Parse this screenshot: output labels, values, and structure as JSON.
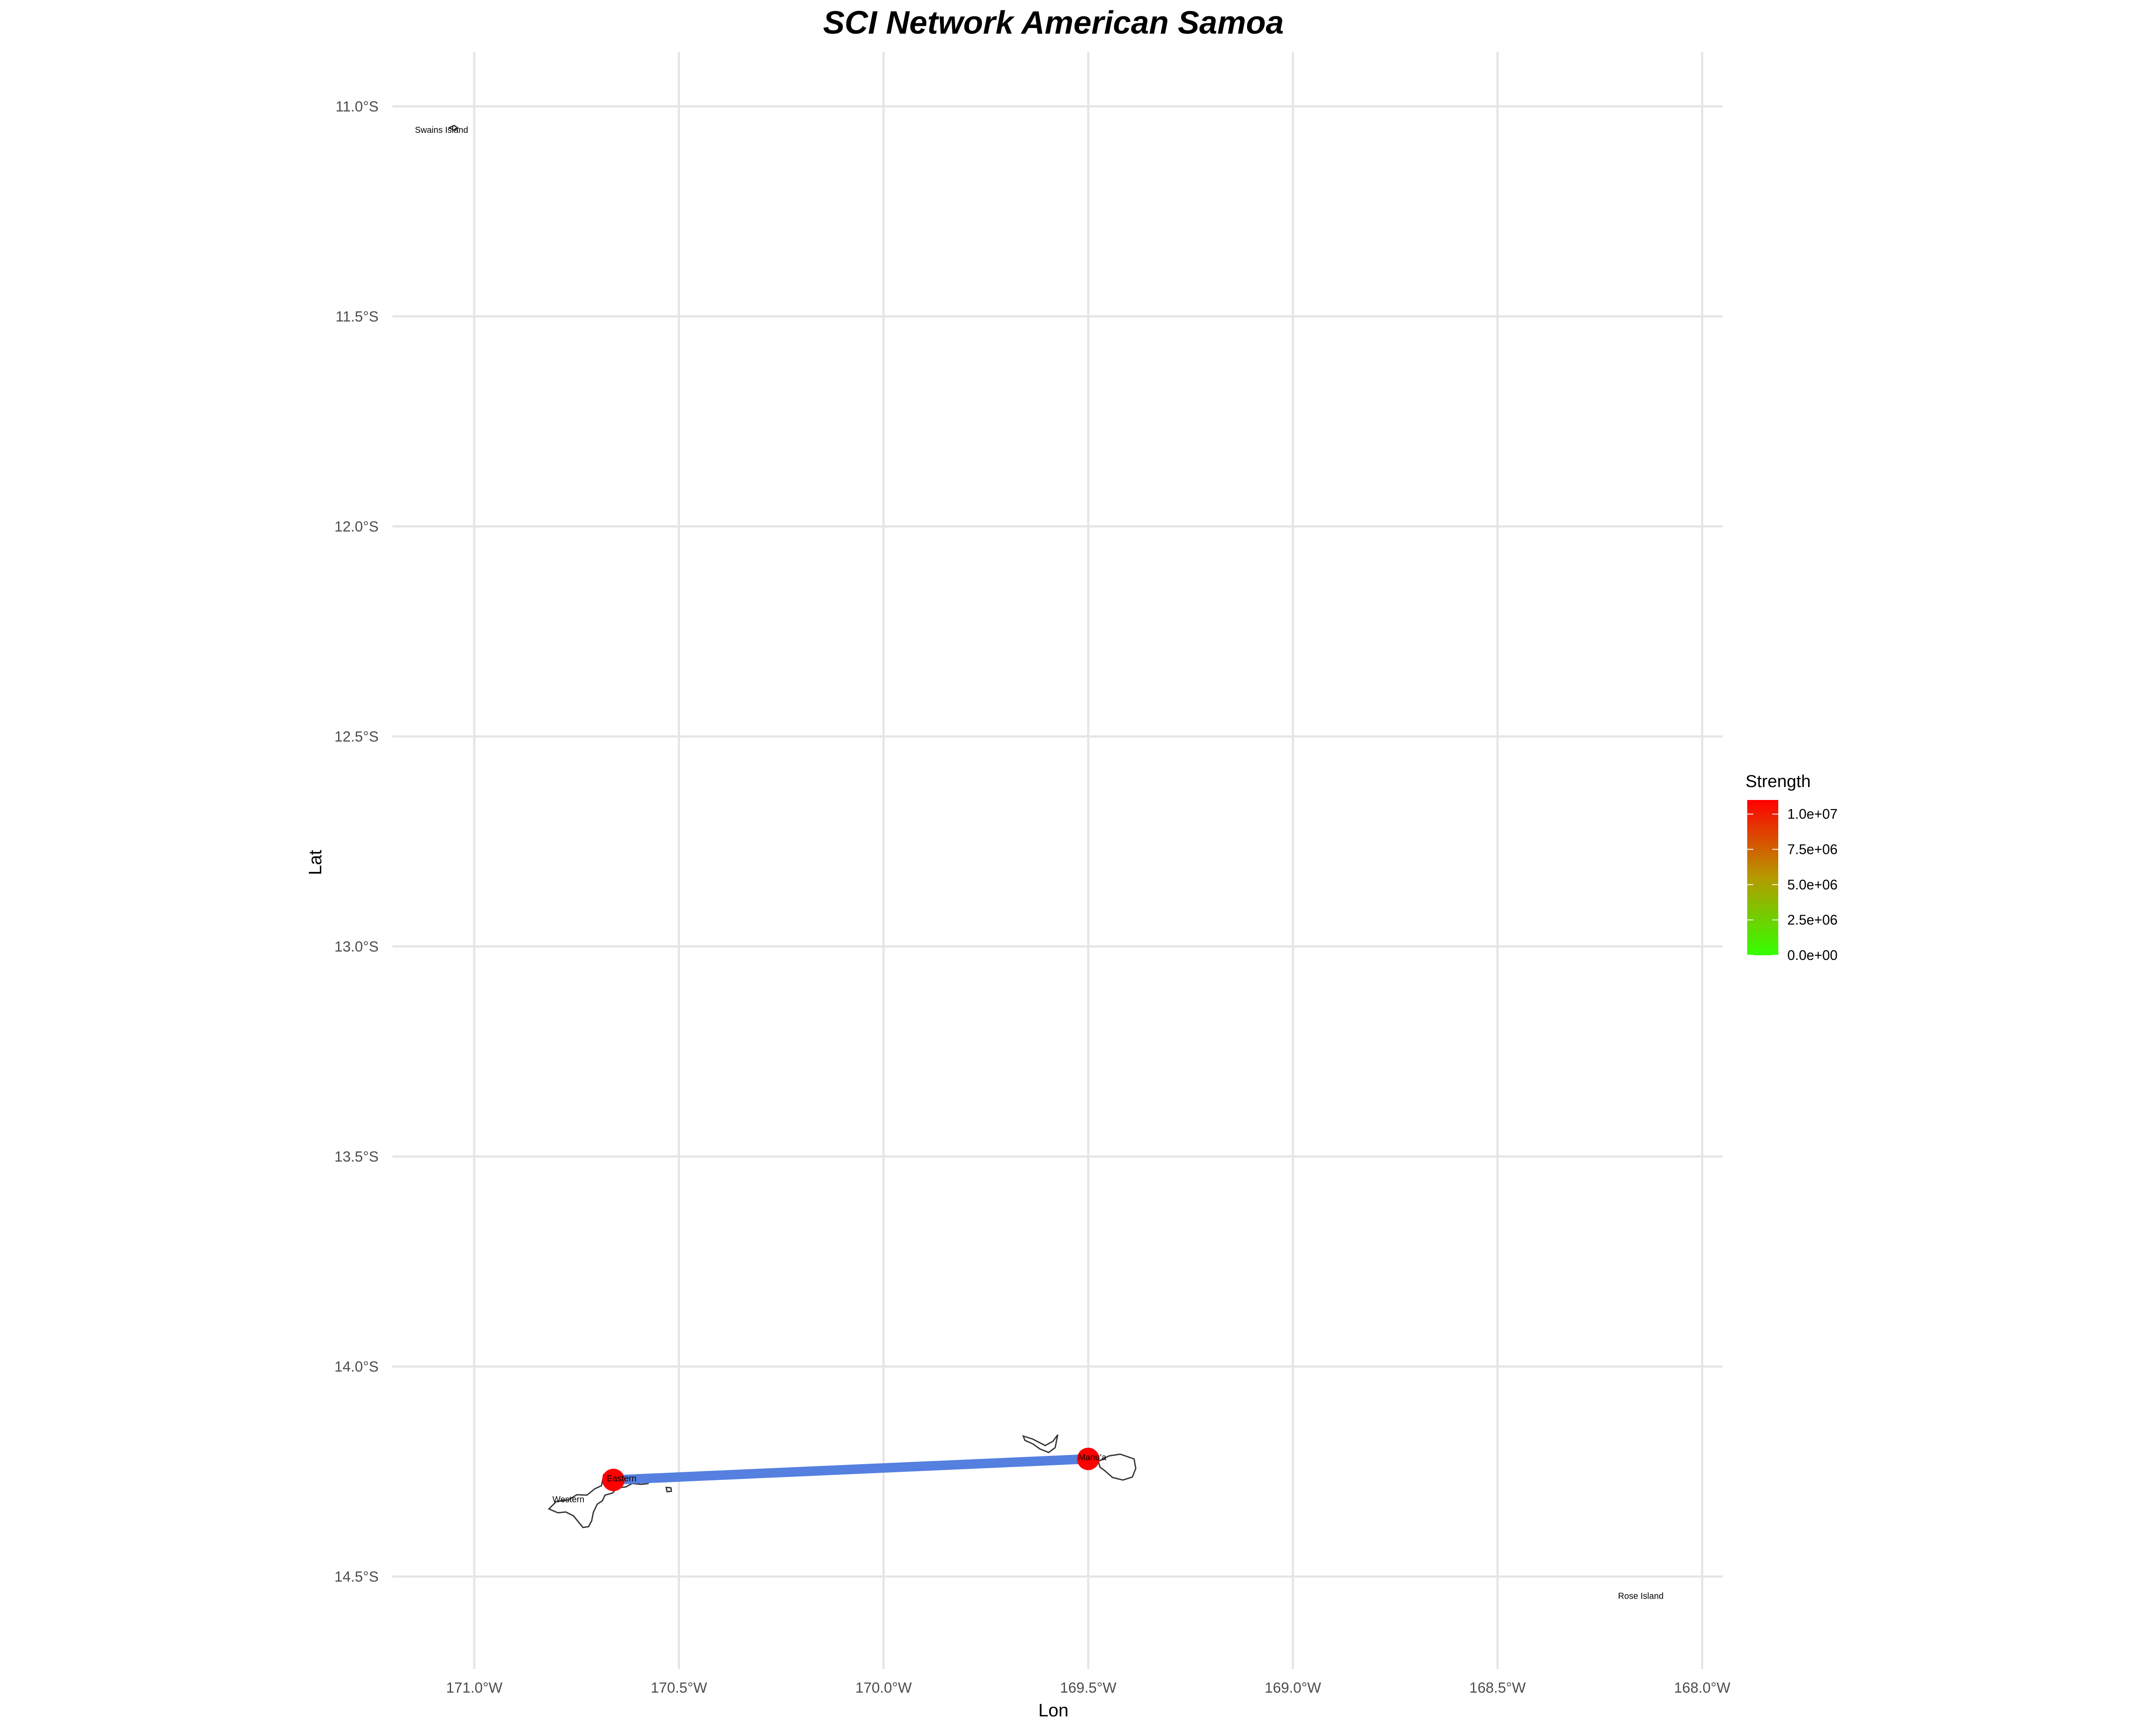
{
  "title": "SCI Network American Samoa",
  "x_axis": {
    "label": "Lon",
    "ticks": [
      -171.0,
      -170.5,
      -170.0,
      -169.5,
      -169.0,
      -168.5,
      -168.0
    ],
    "tick_labels": [
      "171.0°W",
      "170.5°W",
      "170.0°W",
      "169.5°W",
      "169.0°W",
      "168.5°W",
      "168.0°W"
    ]
  },
  "y_axis": {
    "label": "Lat",
    "ticks": [
      -11.0,
      -11.5,
      -12.0,
      -12.5,
      -13.0,
      -13.5,
      -14.0,
      -14.5
    ],
    "tick_labels": [
      "11.0°S",
      "11.5°S",
      "12.0°S",
      "12.5°S",
      "13.0°S",
      "13.5°S",
      "14.0°S",
      "14.5°S"
    ]
  },
  "legend": {
    "title": "Strength",
    "position": "right",
    "low_color": "#33ff00",
    "high_color": "#ff0000",
    "range": [
      0,
      11000000
    ],
    "breaks": [
      0,
      2500000,
      5000000,
      7500000,
      10000000
    ],
    "break_labels": [
      "0.0e+00",
      "2.5e+06",
      "5.0e+06",
      "7.5e+06",
      "1.0e+07"
    ]
  },
  "chart_data": {
    "type": "map",
    "xlim": [
      -171.2,
      -167.95
    ],
    "ylim": [
      -14.72,
      -10.87
    ],
    "grid": true,
    "nodes": [
      {
        "name": "Eastern",
        "lon": -170.66,
        "lat": -14.27,
        "color": "#ff0000"
      },
      {
        "name": "Manu'a",
        "lon": -169.5,
        "lat": -14.22,
        "color": "#ff0000"
      }
    ],
    "edges": [
      {
        "from": "Eastern",
        "to": "Manu'a",
        "color": "#5580e0"
      }
    ],
    "place_labels": [
      {
        "name": "Swains Island",
        "lon": -171.08,
        "lat": -11.055
      },
      {
        "name": "Eastern",
        "lon": -170.64,
        "lat": -14.265
      },
      {
        "name": "Western",
        "lon": -170.77,
        "lat": -14.315
      },
      {
        "name": "Manu'a",
        "lon": -169.49,
        "lat": -14.215
      },
      {
        "name": "Rose Island",
        "lon": -168.15,
        "lat": -14.545
      }
    ]
  }
}
